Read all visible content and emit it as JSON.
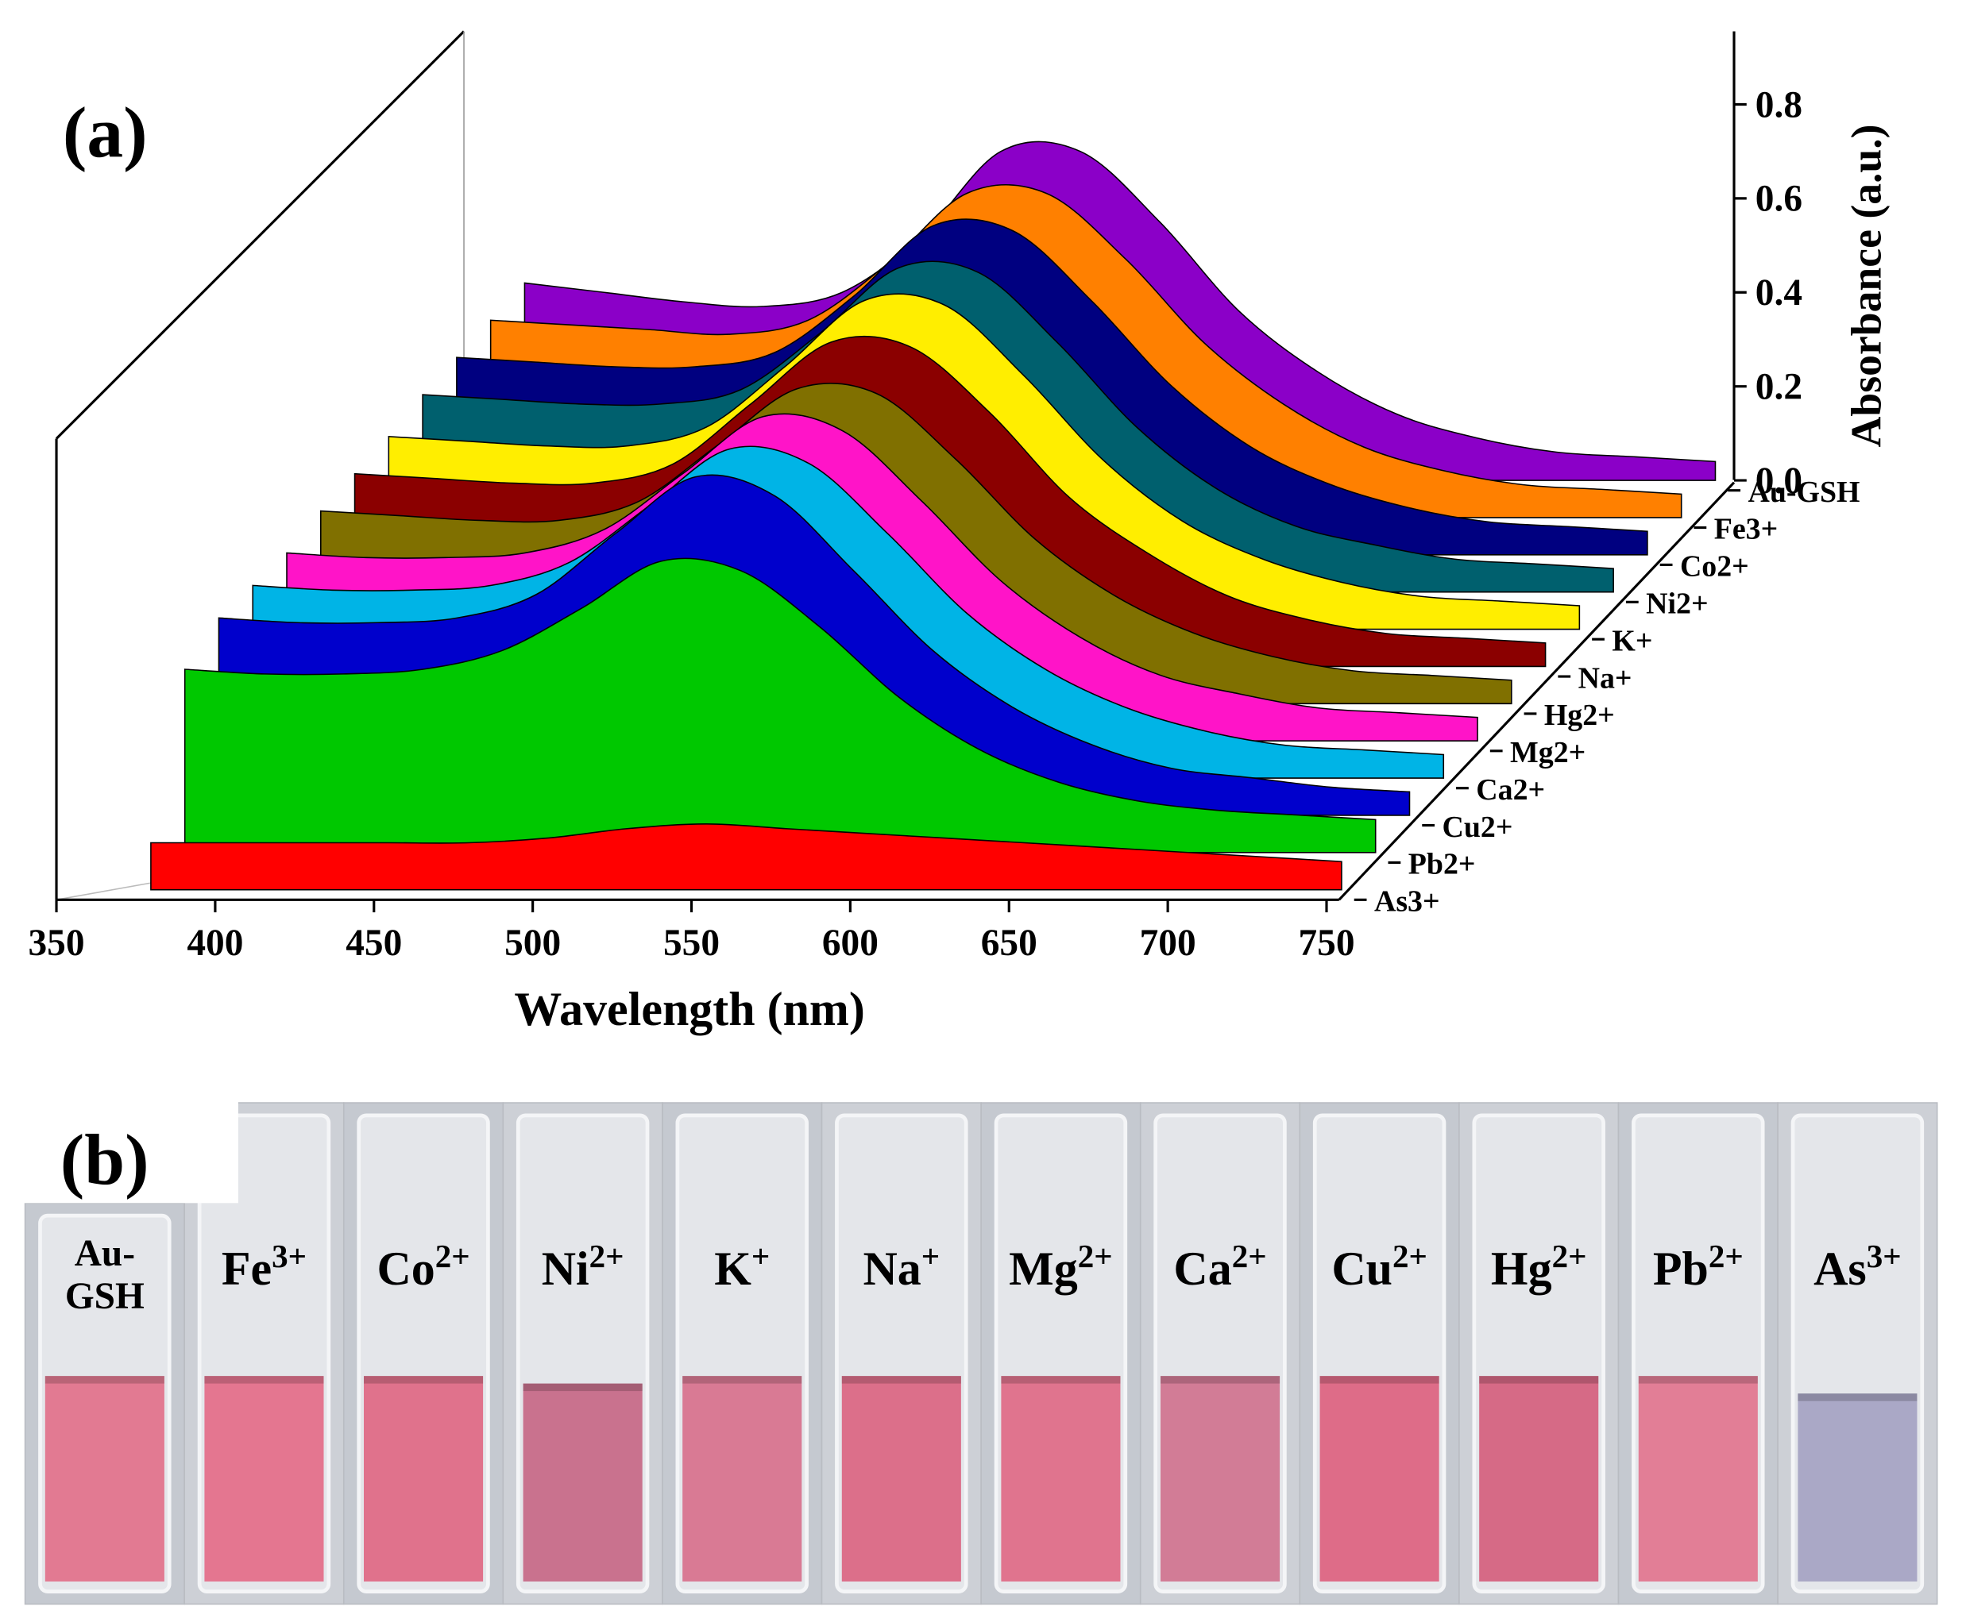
{
  "chart_data": {
    "type": "waterfall",
    "panel_label": "(a)",
    "xlabel": "Wavelength (nm)",
    "ylabel": "Absorbance (a.u.)",
    "xlim": [
      350,
      750
    ],
    "xticks": [
      350,
      400,
      450,
      500,
      550,
      600,
      650,
      700,
      750
    ],
    "ylim": [
      0,
      0.95
    ],
    "yticks": [
      {
        "value": 0,
        "label": "0.0"
      },
      0.2,
      0.4,
      0.6,
      0.8
    ],
    "x": [
      375,
      400,
      425,
      450,
      475,
      500,
      525,
      550,
      575,
      600,
      625,
      650,
      675,
      700,
      725,
      750
    ],
    "series": [
      {
        "name": "As3+",
        "color": "#ff0000",
        "values": [
          0.1,
          0.1,
          0.1,
          0.1,
          0.1,
          0.11,
          0.13,
          0.14,
          0.13,
          0.12,
          0.11,
          0.1,
          0.09,
          0.08,
          0.07,
          0.06
        ]
      },
      {
        "name": "Pb2+",
        "color": "#00c800",
        "values": [
          0.39,
          0.38,
          0.38,
          0.39,
          0.43,
          0.52,
          0.62,
          0.6,
          0.48,
          0.33,
          0.22,
          0.15,
          0.11,
          0.09,
          0.08,
          0.07
        ]
      },
      {
        "name": "Cu2+",
        "color": "#0000cc",
        "values": [
          0.42,
          0.41,
          0.41,
          0.42,
          0.47,
          0.6,
          0.72,
          0.68,
          0.52,
          0.35,
          0.23,
          0.15,
          0.1,
          0.08,
          0.06,
          0.05
        ]
      },
      {
        "name": "Ca2+",
        "color": "#00b4e6",
        "values": [
          0.41,
          0.4,
          0.4,
          0.41,
          0.46,
          0.58,
          0.7,
          0.67,
          0.52,
          0.35,
          0.23,
          0.15,
          0.1,
          0.07,
          0.06,
          0.05
        ]
      },
      {
        "name": "Mg2+",
        "color": "#ff14c8",
        "values": [
          0.4,
          0.39,
          0.39,
          0.4,
          0.45,
          0.57,
          0.69,
          0.66,
          0.51,
          0.34,
          0.22,
          0.14,
          0.1,
          0.07,
          0.06,
          0.05
        ]
      },
      {
        "name": "Hg2+",
        "color": "#807000",
        "values": [
          0.41,
          0.4,
          0.39,
          0.39,
          0.43,
          0.55,
          0.67,
          0.66,
          0.52,
          0.35,
          0.23,
          0.15,
          0.1,
          0.07,
          0.06,
          0.05
        ]
      },
      {
        "name": "Na+",
        "color": "#8b0000",
        "values": [
          0.41,
          0.4,
          0.39,
          0.39,
          0.43,
          0.56,
          0.69,
          0.68,
          0.54,
          0.36,
          0.24,
          0.15,
          0.1,
          0.07,
          0.06,
          0.05
        ]
      },
      {
        "name": "K+",
        "color": "#ffee00",
        "values": [
          0.41,
          0.4,
          0.39,
          0.39,
          0.43,
          0.56,
          0.7,
          0.69,
          0.54,
          0.36,
          0.23,
          0.15,
          0.1,
          0.07,
          0.06,
          0.05
        ]
      },
      {
        "name": "Ni2+",
        "color": "#00606e",
        "values": [
          0.42,
          0.41,
          0.4,
          0.4,
          0.43,
          0.55,
          0.69,
          0.68,
          0.53,
          0.35,
          0.22,
          0.14,
          0.1,
          0.07,
          0.06,
          0.05
        ]
      },
      {
        "name": "Co2+",
        "color": "#000080",
        "values": [
          0.42,
          0.41,
          0.4,
          0.4,
          0.43,
          0.55,
          0.7,
          0.69,
          0.54,
          0.36,
          0.23,
          0.15,
          0.1,
          0.07,
          0.06,
          0.05
        ]
      },
      {
        "name": "Fe3+",
        "color": "#ff8000",
        "values": [
          0.42,
          0.41,
          0.4,
          0.39,
          0.42,
          0.54,
          0.69,
          0.69,
          0.55,
          0.37,
          0.24,
          0.15,
          0.1,
          0.07,
          0.06,
          0.05
        ]
      },
      {
        "name": "Au-GSH",
        "color": "#8b00c8",
        "values": [
          0.42,
          0.4,
          0.38,
          0.37,
          0.4,
          0.52,
          0.7,
          0.7,
          0.55,
          0.36,
          0.23,
          0.14,
          0.09,
          0.06,
          0.05,
          0.04
        ]
      }
    ]
  },
  "photo": {
    "panel_label": "(b)",
    "cuvettes": [
      {
        "lines": [
          "Au-",
          "GSH"
        ],
        "liquid_color": "#e27a92"
      },
      {
        "base": "Fe",
        "sup": "3+",
        "liquid_color": "#e47690"
      },
      {
        "base": "Co",
        "sup": "2+",
        "liquid_color": "#e0728c"
      },
      {
        "base": "Ni",
        "sup": "2+",
        "liquid_color": "#c9728e"
      },
      {
        "base": "K",
        "sup": "+",
        "liquid_color": "#d97a94"
      },
      {
        "base": "Na",
        "sup": "+",
        "liquid_color": "#dc6f8a"
      },
      {
        "base": "Mg",
        "sup": "2+",
        "liquid_color": "#e0748e"
      },
      {
        "base": "Ca",
        "sup": "2+",
        "liquid_color": "#d27c96"
      },
      {
        "base": "Cu",
        "sup": "2+",
        "liquid_color": "#de6c88"
      },
      {
        "base": "Hg",
        "sup": "2+",
        "liquid_color": "#d66a86"
      },
      {
        "base": "Pb",
        "sup": "2+",
        "liquid_color": "#e27e96"
      },
      {
        "base": "As",
        "sup": "3+",
        "liquid_color": "#aaa8c6"
      }
    ]
  }
}
